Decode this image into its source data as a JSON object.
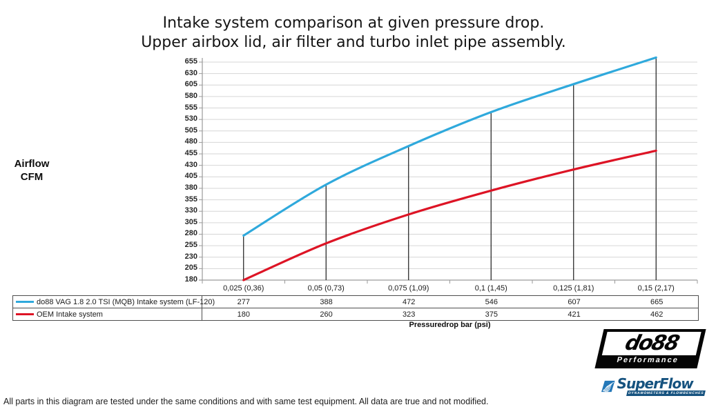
{
  "title": {
    "line1": "Intake system comparison at given pressure drop.",
    "line2": "Upper airbox lid, air filter and turbo inlet pipe assembly."
  },
  "y_axis": {
    "label_line1": "Airflow",
    "label_line2": "CFM",
    "min": 180,
    "max": 655,
    "step": 25
  },
  "chart_data": {
    "type": "line",
    "title": "Intake system comparison at given pressure drop. Upper airbox lid, air filter and turbo inlet pipe assembly.",
    "xlabel": "Pressuredrop bar (psi)",
    "ylabel": "Airflow CFM",
    "ylim": [
      180,
      655
    ],
    "y_tick_step": 25,
    "grid": true,
    "legend_position": "table-left",
    "categories": [
      "0,025 (0,36)",
      "0,05 (0,73)",
      "0,075 (1,09)",
      "0,1 (1,45)",
      "0,125 (1,81)",
      "0,15 (2,17)"
    ],
    "series": [
      {
        "name": "do88 VAG 1.8 2.0 TSI (MQB) Intake system (LF-120)",
        "color": "#2fa9dc",
        "values": [
          277,
          388,
          472,
          546,
          607,
          665
        ]
      },
      {
        "name": "OEM Intake system",
        "color": "#dd1425",
        "values": [
          180,
          260,
          323,
          375,
          421,
          462
        ]
      }
    ]
  },
  "colors": {
    "gridline": "#d6d6d6",
    "axis": "#9a9a9a",
    "dropline": "#1a1a1a",
    "table_border": "#4d4d4d",
    "do88_black": "#050505",
    "superflow_blue": "#15527f",
    "superflow_icon_blue": "#2478b8"
  },
  "footer": {
    "note": "All parts in this diagram are tested under the same conditions and with same test equipment. All data are true and not modified."
  },
  "logos": {
    "do88": {
      "text": "do88",
      "subtext": "Performance"
    },
    "superflow": {
      "text": "SuperFlow",
      "subtext": "DYNAMOMETERS & FLOWBENCHES"
    }
  }
}
